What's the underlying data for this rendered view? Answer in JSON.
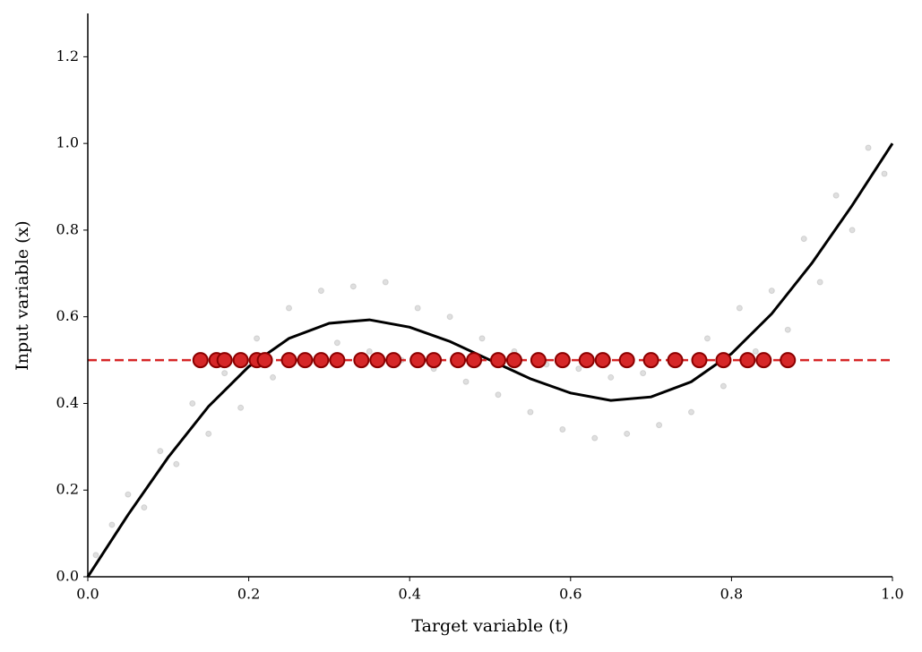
{
  "chart_data": {
    "type": "line",
    "xlabel": "Target variable (t)",
    "ylabel": "Input variable (x)",
    "xlim": [
      0,
      1
    ],
    "ylim": [
      0,
      1.3
    ],
    "xticks": [
      {
        "value": 0,
        "label": "0.0"
      },
      0.2,
      0.4,
      0.6,
      0.8,
      {
        "value": 1,
        "label": "1.0"
      }
    ],
    "yticks": [
      {
        "value": 0,
        "label": "0.0"
      },
      0.2,
      0.4,
      0.6,
      0.8,
      {
        "value": 1,
        "label": "1.0"
      },
      1.2
    ],
    "series": [
      {
        "type": "scatter",
        "color": "#808080",
        "alpha": 0.25,
        "size": 3,
        "x": [
          0.01,
          0.03,
          0.05,
          0.07,
          0.09,
          0.11,
          0.13,
          0.15,
          0.17,
          0.19,
          0.21,
          0.23,
          0.25,
          0.27,
          0.29,
          0.31,
          0.33,
          0.35,
          0.37,
          0.39,
          0.41,
          0.43,
          0.45,
          0.47,
          0.49,
          0.51,
          0.53,
          0.55,
          0.57,
          0.59,
          0.61,
          0.63,
          0.65,
          0.67,
          0.69,
          0.71,
          0.73,
          0.75,
          0.77,
          0.79,
          0.81,
          0.83,
          0.85,
          0.87,
          0.89,
          0.91,
          0.93,
          0.95,
          0.97,
          0.99
        ],
        "values": [
          0.05,
          0.12,
          0.19,
          0.16,
          0.29,
          0.26,
          0.4,
          0.33,
          0.47,
          0.39,
          0.55,
          0.46,
          0.62,
          0.5,
          0.66,
          0.54,
          0.67,
          0.52,
          0.68,
          0.5,
          0.62,
          0.48,
          0.6,
          0.45,
          0.55,
          0.42,
          0.52,
          0.38,
          0.49,
          0.34,
          0.48,
          0.32,
          0.46,
          0.33,
          0.47,
          0.35,
          0.5,
          0.38,
          0.55,
          0.44,
          0.62,
          0.52,
          0.66,
          0.57,
          0.78,
          0.68,
          0.88,
          0.8,
          0.99,
          0.93
        ]
      },
      {
        "type": "line",
        "color": "#000000",
        "width": 3,
        "x": [
          0,
          0.05,
          0.1,
          0.15,
          0.2,
          0.25,
          0.3,
          0.35,
          0.4,
          0.45,
          0.5,
          0.55,
          0.6,
          0.65,
          0.7,
          0.75,
          0.8,
          0.85,
          0.9,
          0.95,
          1
        ],
        "values": [
          0,
          0.143,
          0.276,
          0.393,
          0.485,
          0.55,
          0.585,
          0.593,
          0.576,
          0.543,
          0.5,
          0.457,
          0.424,
          0.407,
          0.415,
          0.45,
          0.515,
          0.607,
          0.724,
          0.857,
          1
        ]
      },
      {
        "type": "line",
        "color": "#d62728",
        "width": 2.5,
        "dashed": true,
        "x": [
          0,
          1
        ],
        "values": [
          0.5,
          0.5
        ]
      },
      {
        "type": "scatter",
        "color": "#d62728",
        "edgecolor": "#8b0000",
        "alpha": 1,
        "size": 8,
        "x": [
          0.14,
          0.16,
          0.17,
          0.19,
          0.21,
          0.22,
          0.25,
          0.27,
          0.29,
          0.31,
          0.34,
          0.36,
          0.38,
          0.41,
          0.43,
          0.46,
          0.48,
          0.51,
          0.53,
          0.56,
          0.59,
          0.62,
          0.64,
          0.67,
          0.7,
          0.73,
          0.76,
          0.79,
          0.82,
          0.84,
          0.87
        ],
        "values": [
          0.5,
          0.5,
          0.5,
          0.5,
          0.5,
          0.5,
          0.5,
          0.5,
          0.5,
          0.5,
          0.5,
          0.5,
          0.5,
          0.5,
          0.5,
          0.5,
          0.5,
          0.5,
          0.5,
          0.5,
          0.5,
          0.5,
          0.5,
          0.5,
          0.5,
          0.5,
          0.5,
          0.5,
          0.5,
          0.5,
          0.5
        ]
      }
    ]
  }
}
